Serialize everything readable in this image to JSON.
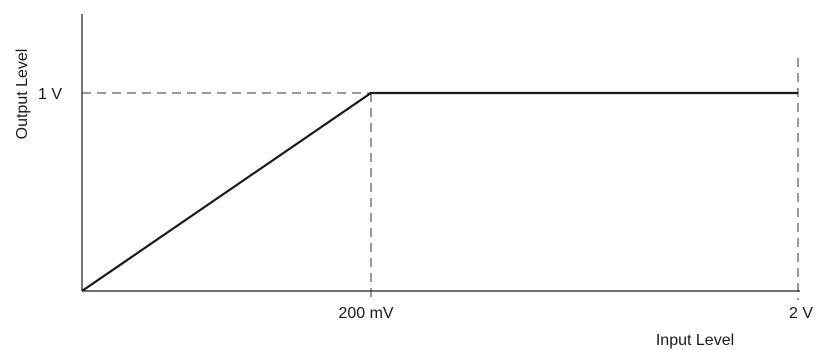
{
  "chart_data": {
    "type": "line",
    "xlabel": "Input Level",
    "ylabel": "Output Level",
    "x_ticks": [
      "200 mV",
      "2 V"
    ],
    "y_ticks": [
      "1 V"
    ],
    "x_tick_values": [
      0.2,
      2.0
    ],
    "y_tick_values": [
      1.0
    ],
    "x_scale": "nonlinear (ticks at 200 mV and 2 V)",
    "series": [
      {
        "points": [
          {
            "x": 0,
            "y": 0
          },
          {
            "x": 0.2,
            "y": 1.0
          },
          {
            "x": 2.0,
            "y": 1.0
          }
        ]
      }
    ],
    "reference_lines": {
      "horizontal_dashed_at_y": "1 V",
      "vertical_dashed_at_x": [
        "200 mV",
        "2 V"
      ]
    },
    "grid": false,
    "legend": "none",
    "colors": {
      "line": "#1a1a1a",
      "axis": "#1a1a1a",
      "dashed": "#333333"
    }
  }
}
